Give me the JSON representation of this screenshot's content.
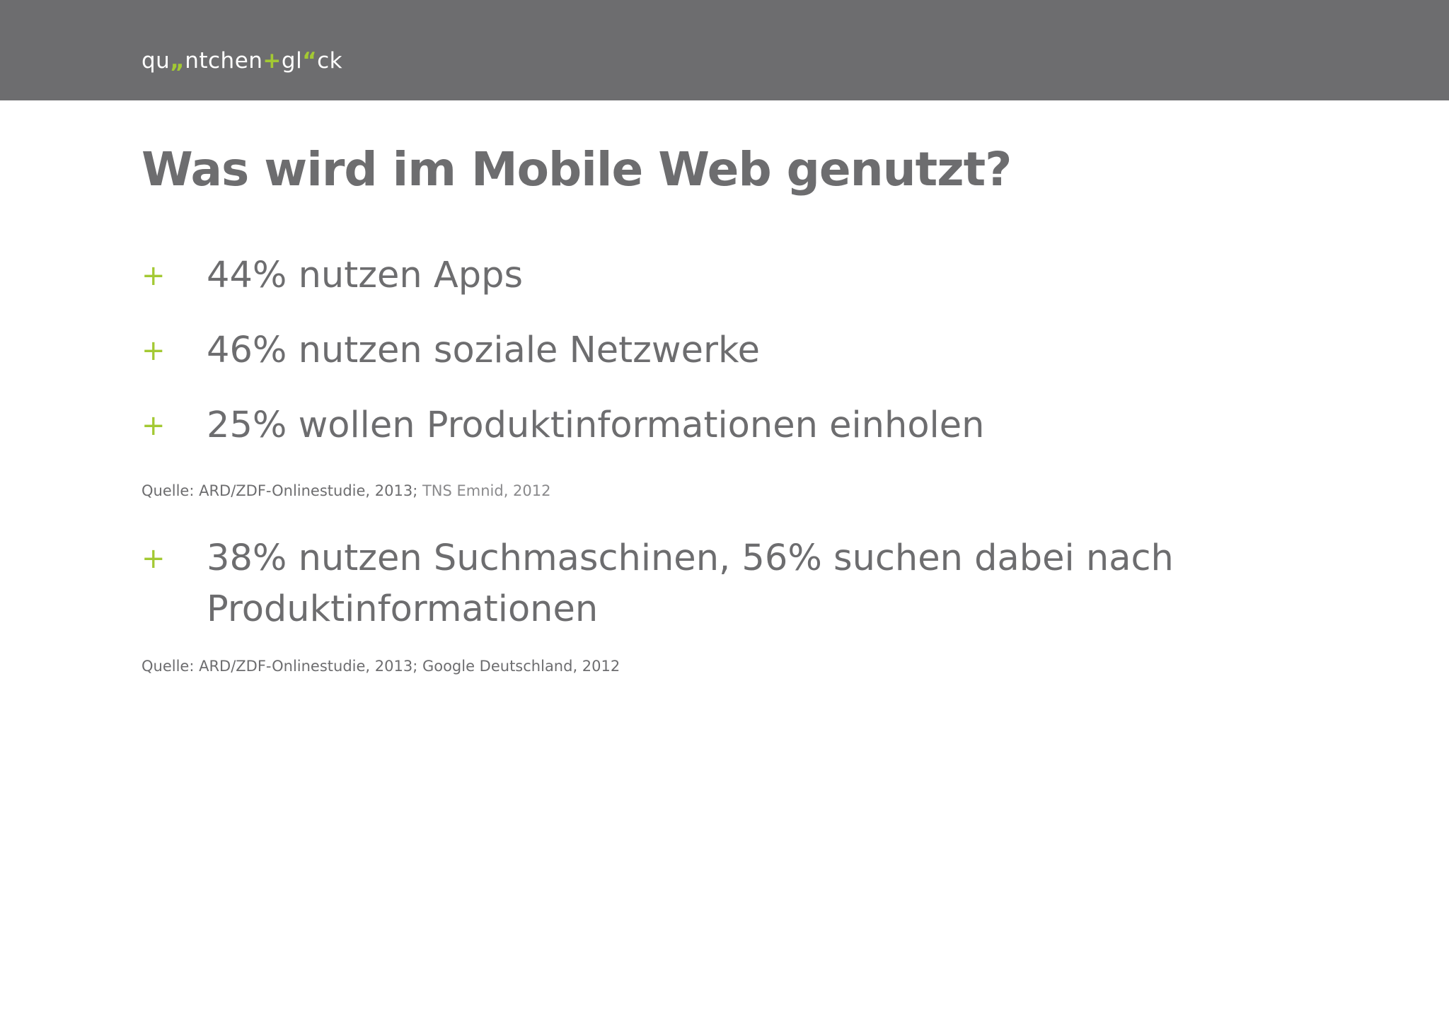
{
  "header": {
    "logo": {
      "part1": "qu",
      "mark1": "„",
      "part2": "ntchen",
      "mark2": "+",
      "part3": "gl",
      "mark3": "“",
      "part4": "ck"
    },
    "accent_color": "#a3c933",
    "background_color": "#6d6d6f"
  },
  "slide": {
    "title": "Was wird im Mobile Web genutzt?",
    "bullet_marker": "+",
    "bullets": [
      {
        "text": "44% nutzen Apps"
      },
      {
        "text": "46% nutzen soziale Netzwerke"
      },
      {
        "text": "25% wollen Produktinformationen einholen"
      },
      {
        "text": "38% nutzen Suchmaschinen, 56% suchen dabei nach Produktinformationen"
      }
    ],
    "sources": [
      {
        "main": "Quelle: ARD/ZDF-Onlinestudie, 2013;",
        "extra": " TNS Emnid, 2012"
      },
      {
        "main": "Quelle: ARD/ZDF-Onlinestudie, 2013; Google Deutschland, 2012"
      }
    ]
  }
}
